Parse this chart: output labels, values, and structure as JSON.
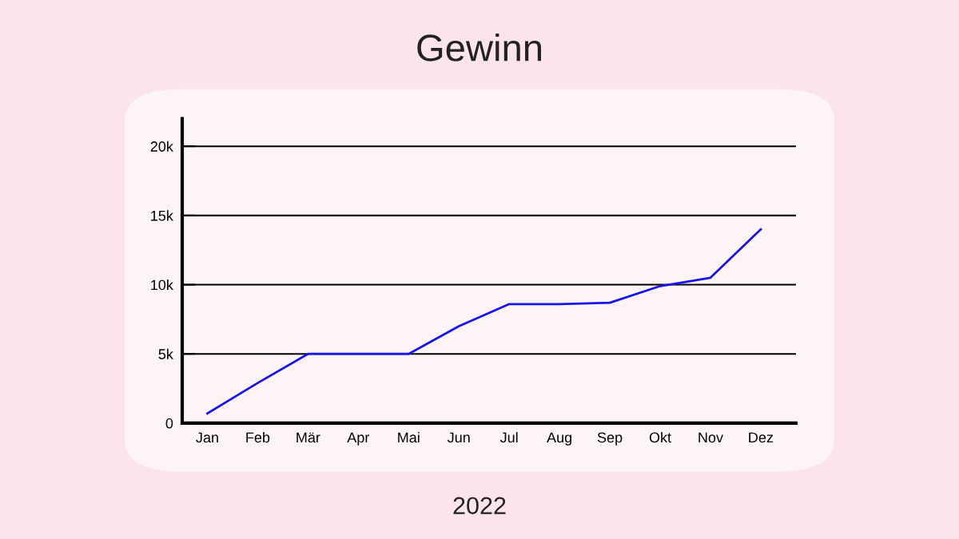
{
  "chart_data": {
    "type": "line",
    "title": "Gewinn",
    "xlabel": "2022",
    "categories": [
      "Jan",
      "Feb",
      "Mär",
      "Apr",
      "Mai",
      "Jun",
      "Jul",
      "Aug",
      "Sep",
      "Okt",
      "Nov",
      "Dez"
    ],
    "series": [
      {
        "color": "#1a12f0",
        "values": [
          700,
          2900,
          5000,
          5000,
          5000,
          7000,
          8600,
          8600,
          8700,
          9900,
          10500,
          14000
        ]
      }
    ],
    "ylim": [
      0,
      22000
    ],
    "yticks": [
      {
        "value": 0,
        "label": "0"
      },
      {
        "value": 5000,
        "label": "5k"
      },
      {
        "value": 10000,
        "label": "10k"
      },
      {
        "value": 15000,
        "label": "15k"
      },
      {
        "value": 20000,
        "label": "20k"
      }
    ],
    "grid": "y",
    "legend": false,
    "marker": "none",
    "line_style": "solid"
  }
}
